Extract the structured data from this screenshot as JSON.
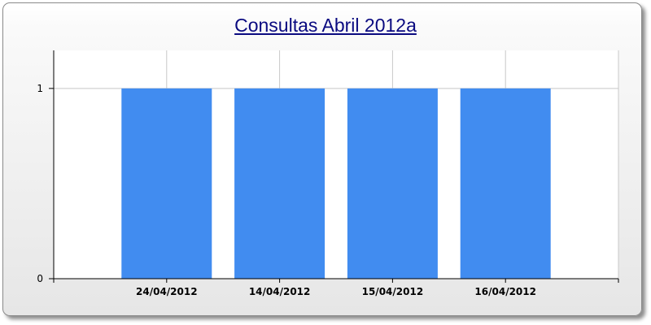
{
  "chart_data": {
    "type": "bar",
    "title": "Consultas Abril 2012a",
    "xlabel": "",
    "ylabel": "",
    "categories": [
      "24/04/2012",
      "14/04/2012",
      "15/04/2012",
      "16/04/2012"
    ],
    "values": [
      1,
      1,
      1,
      1
    ],
    "ylim": [
      0,
      1.2
    ],
    "yticks": [
      0,
      1
    ],
    "grid": true,
    "legend": "none",
    "bar_color": "#418cf0"
  }
}
